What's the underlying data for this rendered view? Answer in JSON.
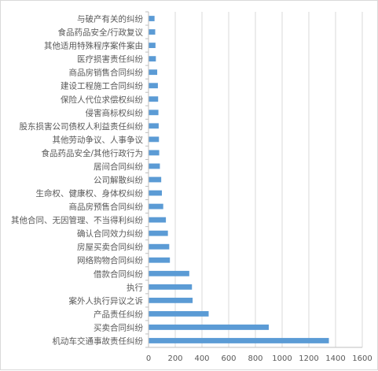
{
  "chart_data": {
    "type": "bar",
    "orientation": "horizontal",
    "categories": [
      "机动车交通事故责任纠纷",
      "买卖合同纠纷",
      "产品责任纠纷",
      "案外人执行异议之诉",
      "执行",
      "借款合同纠纷",
      "网络购物合同纠纷",
      "房屋买卖合同纠纷",
      "确认合同效力纠纷",
      "其他合同、无因管理、不当得利纠纷",
      "商品房预售合同纠纷",
      "生命权、健康权、身体权纠纷",
      "公司解散纠纷",
      "居间合同纠纷",
      "食品药品安全/其他行政行为",
      "其他劳动争议、人事争议",
      "股东损害公司债权人利益责任纠纷",
      "侵害商标权纠纷",
      "保险人代位求偿权纠纷",
      "建设工程施工合同纠纷",
      "商品房销售合同纠纷",
      "医疗损害责任纠纷",
      "其他适用特殊程序案件案由",
      "食品药品安全/行政复议",
      "与破产有关的纠纷"
    ],
    "values": [
      1350,
      900,
      450,
      330,
      325,
      305,
      160,
      155,
      145,
      130,
      110,
      100,
      95,
      85,
      80,
      78,
      76,
      74,
      72,
      70,
      65,
      55,
      52,
      50,
      45
    ],
    "xlim": [
      0,
      1600
    ],
    "xticks": [
      "0",
      "200",
      "400",
      "600",
      "800",
      "1000",
      "1200",
      "1400",
      "1600"
    ],
    "grid": true,
    "legend": "none",
    "colors": {
      "bar": "#5b9bd5",
      "grid": "#d9d9d9",
      "axis": "#bfbfbf",
      "text": "#595959"
    }
  }
}
